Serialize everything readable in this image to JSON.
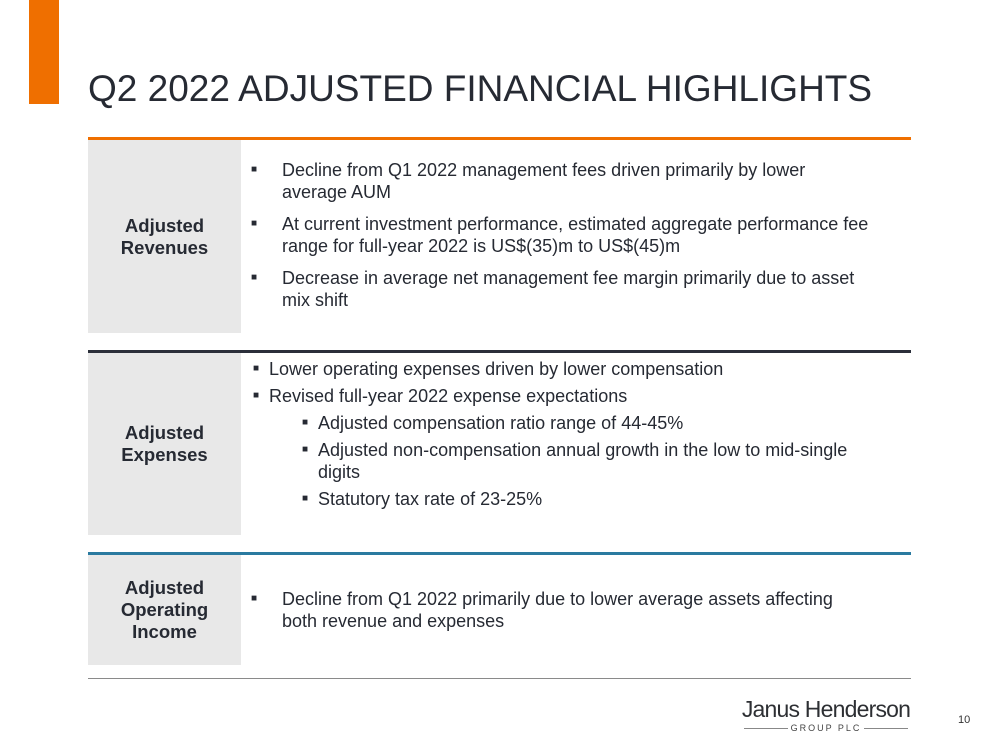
{
  "title": "Q2 2022 ADJUSTED FINANCIAL HIGHLIGHTS",
  "colors": {
    "accent": "#ef6f00",
    "section2_rule": "#2b2f3a",
    "section3_rule": "#2a7aa0",
    "label_bg": "#e8e8e8"
  },
  "sections": [
    {
      "label": "Adjusted Revenues",
      "bullets": [
        "Decline from Q1 2022 management fees driven primarily by lower average AUM",
        "At current investment performance, estimated aggregate performance fee range for full-year 2022 is US$(35)m to US$(45)m",
        "Decrease in average net management fee margin primarily due to asset mix shift"
      ]
    },
    {
      "label": "Adjusted Expenses",
      "bullets": [
        "Lower operating expenses driven by lower compensation",
        "Revised full-year 2022 expense expectations"
      ],
      "sub_bullets": [
        "Adjusted compensation ratio range of 44-45%",
        "Adjusted non-compensation annual growth in the low to mid-single digits",
        "Statutory tax rate of 23-25%"
      ]
    },
    {
      "label": "Adjusted Operating Income",
      "bullets": [
        "Decline from Q1 2022 primarily due to lower average assets affecting both revenue and expenses"
      ]
    }
  ],
  "logo": {
    "name": "Janus Henderson",
    "sub": "GROUP PLC"
  },
  "page_number": "10"
}
